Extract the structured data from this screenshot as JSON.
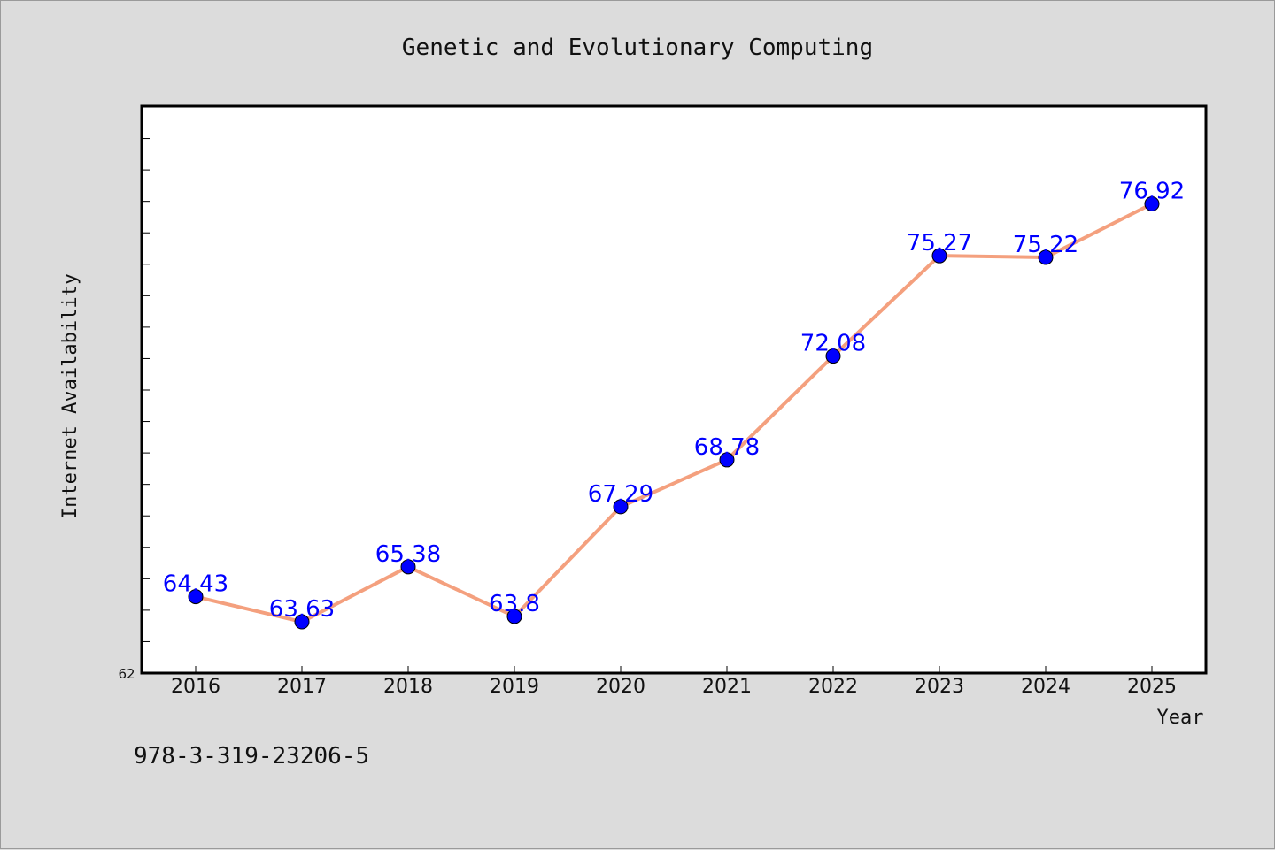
{
  "chart_data": {
    "type": "line",
    "title": "Genetic and Evolutionary Computing",
    "xlabel": "Year",
    "ylabel": "Internet Availability",
    "ytick_labels": [
      "62"
    ],
    "ylim": [
      62,
      80
    ],
    "grid": false,
    "categories": [
      "2016",
      "2017",
      "2018",
      "2019",
      "2020",
      "2021",
      "2022",
      "2023",
      "2024",
      "2025"
    ],
    "series": [
      {
        "values": [
          64.43,
          63.63,
          65.38,
          63.8,
          67.29,
          68.78,
          72.08,
          75.27,
          75.22,
          76.92
        ],
        "line_color": "#f4a07e",
        "marker_color": "#0000ff"
      }
    ],
    "data_labels": [
      "64.43",
      "63.63",
      "65.38",
      "63.8",
      "67.29",
      "68.78",
      "72.08",
      "75.27",
      "75.22",
      "76.92"
    ]
  },
  "footnote": "978-3-319-23206-5",
  "colors": {
    "background": "#dcdcdc",
    "plot_area": "#ffffff",
    "line": "#f4a07e",
    "marker": "#0000ff",
    "label": "#0000ff"
  }
}
